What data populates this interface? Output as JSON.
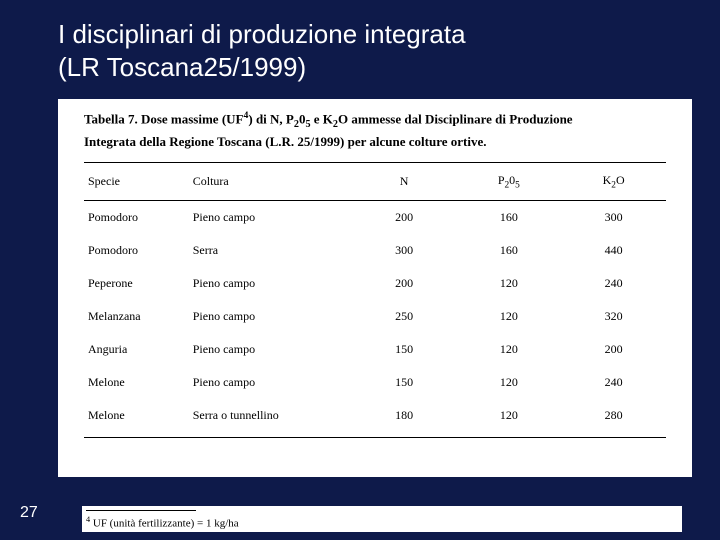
{
  "slide": {
    "title_line1": "I disciplinari di produzione integrata",
    "title_line2": "(LR Toscana25/1999)",
    "page_number": "27",
    "background_color": "#0e1a4a",
    "title_color": "#ffffff",
    "title_fontsize": 26
  },
  "table": {
    "caption_prefix": "Tabella 7. Dose massime (UF",
    "caption_sup": "4",
    "caption_mid1": ") di N, P",
    "caption_sub1": "2",
    "caption_mid2": "0",
    "caption_sub2": "5",
    "caption_mid3": " e K",
    "caption_sub3": "2",
    "caption_mid4": "O ammesse dal Disciplinare di Produzione",
    "caption_line2": "Integrata della Regione Toscana (L.R. 25/1999) per alcune colture ortive.",
    "columns": {
      "specie": "Specie",
      "coltura": "Coltura",
      "n": "N",
      "p": "P",
      "p_sub1": "2",
      "p_mid": "0",
      "p_sub2": "5",
      "k": "K",
      "k_sub": "2",
      "k_suffix": "O"
    },
    "rows": [
      {
        "specie": "Pomodoro",
        "coltura": "Pieno campo",
        "n": "200",
        "p": "160",
        "k": "300"
      },
      {
        "specie": "Pomodoro",
        "coltura": "Serra",
        "n": "300",
        "p": "160",
        "k": "440"
      },
      {
        "specie": "Peperone",
        "coltura": "Pieno campo",
        "n": "200",
        "p": "120",
        "k": "240"
      },
      {
        "specie": "Melanzana",
        "coltura": "Pieno campo",
        "n": "250",
        "p": "120",
        "k": "320"
      },
      {
        "specie": "Anguria",
        "coltura": "Pieno campo",
        "n": "150",
        "p": "120",
        "k": "200"
      },
      {
        "specie": "Melone",
        "coltura": "Pieno campo",
        "n": "150",
        "p": "120",
        "k": "240"
      },
      {
        "specie": "Melone",
        "coltura": "Serra o tunnellino",
        "n": "180",
        "p": "120",
        "k": "280"
      }
    ],
    "col_widths": [
      "18%",
      "28%",
      "18%",
      "18%",
      "18%"
    ],
    "font_size": 12,
    "border_color": "#000000",
    "background_color": "#ffffff"
  },
  "footnote": {
    "marker": "4",
    "text": " UF (unità fertilizzante) = 1 kg/ha",
    "rule_width": 110,
    "font_size": 11
  }
}
